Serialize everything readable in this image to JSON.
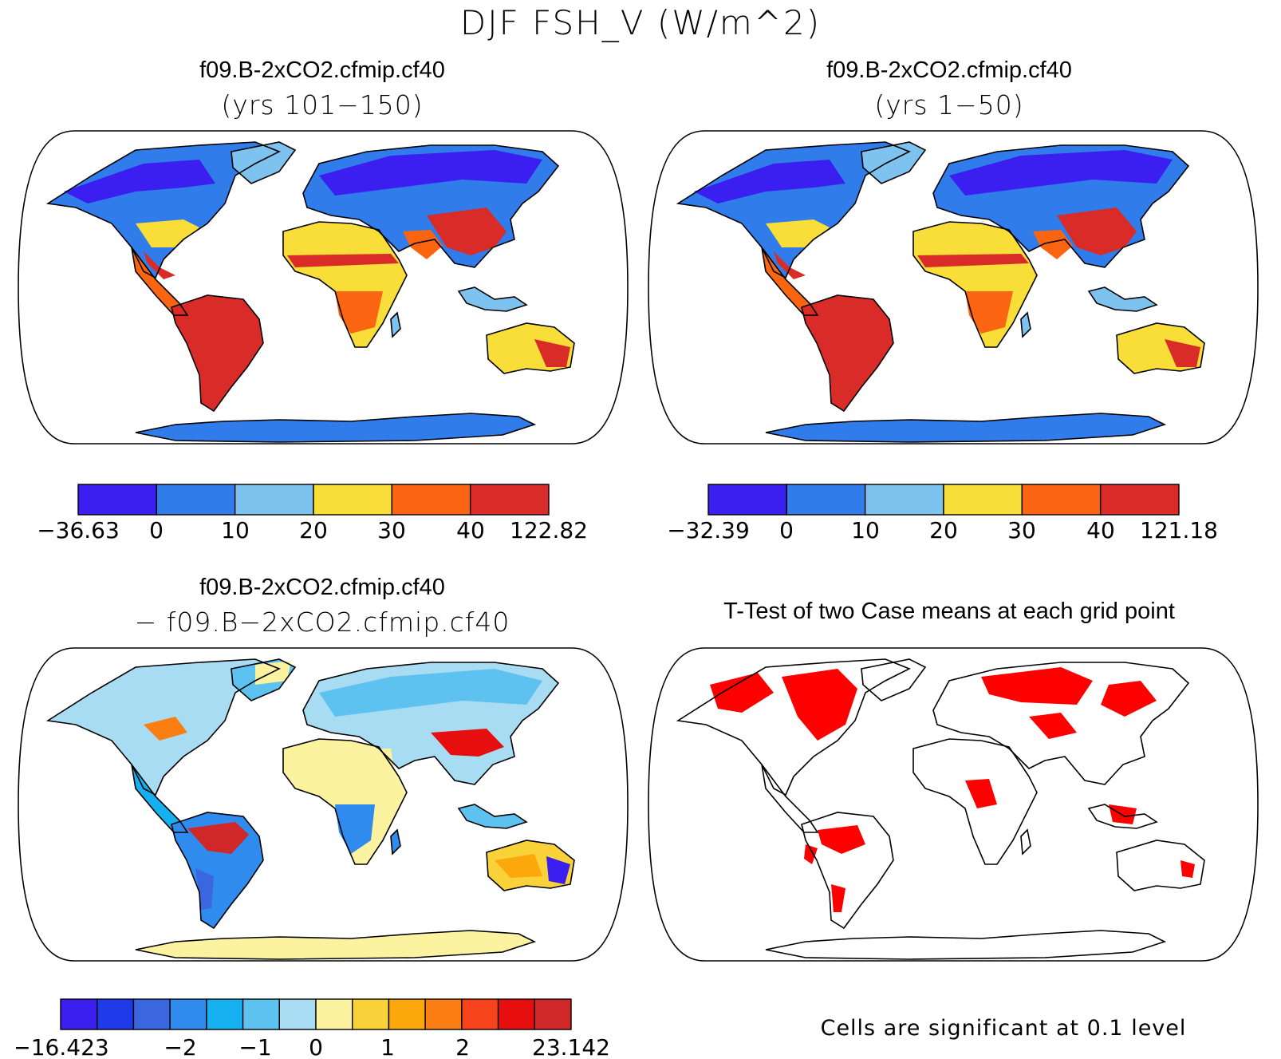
{
  "figure": {
    "title": "DJF FSH_V (W/m^2)",
    "footnote": "Cells are significant at 0.1 level"
  },
  "panels": [
    {
      "title": "f09.B-2xCO2.cfmip.cf40",
      "subtitle": "(yrs 101−150)",
      "colorbar": {
        "colors": [
          "#3a1ff0",
          "#2f7cea",
          "#7ec3ef",
          "#f9dd38",
          "#fb6410",
          "#d92b27"
        ],
        "labels": [
          "−36.63",
          "0",
          "10",
          "20",
          "30",
          "40",
          "122.82"
        ]
      }
    },
    {
      "title": "f09.B-2xCO2.cfmip.cf40",
      "subtitle": "(yrs 1−50)",
      "colorbar": {
        "colors": [
          "#3a1ff0",
          "#2f7cea",
          "#7ec3ef",
          "#f9dd38",
          "#fb6410",
          "#d92b27"
        ],
        "labels": [
          "−32.39",
          "0",
          "10",
          "20",
          "30",
          "40",
          "121.18"
        ]
      }
    },
    {
      "title": "f09.B-2xCO2.cfmip.cf40",
      "subtitle": "− f09.B−2xCO2.cfmip.cf40",
      "colorbar": {
        "colors": [
          "#3a1ff0",
          "#1f3ae8",
          "#3a66e0",
          "#2f8cee",
          "#14b0f0",
          "#5ec2f0",
          "#a8dcf2",
          "#fbf3a0",
          "#f9d23a",
          "#fca80c",
          "#fa7e12",
          "#f6431b",
          "#e60e0e",
          "#d02828"
        ],
        "labels": [
          "−16.423",
          "−2",
          "−1",
          "0",
          "1",
          "2",
          "23.142"
        ]
      }
    },
    {
      "title": "T-Test of two Case means at each grid point"
    }
  ]
}
